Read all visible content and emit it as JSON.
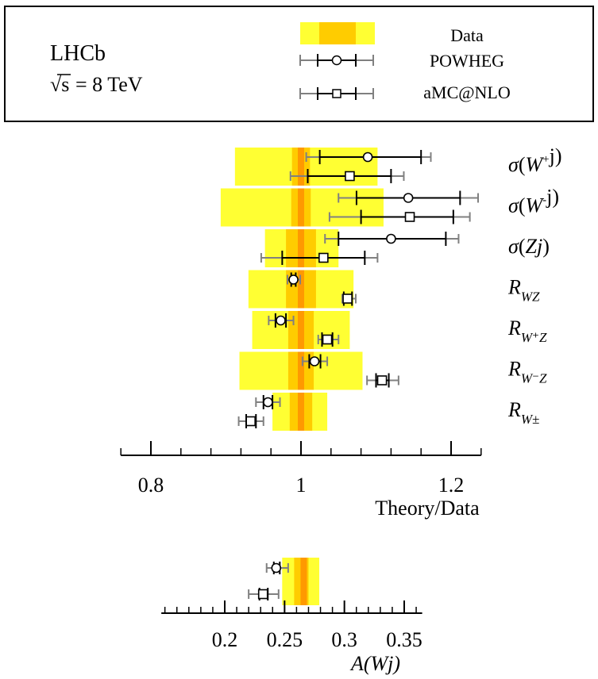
{
  "legend": {
    "experiment": "LHCb",
    "energy_prefix": "√s",
    "energy_value": "= 8 TeV",
    "entries": [
      "Data",
      "POWHEG",
      "aMC@NLO"
    ],
    "placement": "top"
  },
  "colors": {
    "band_outer": "#ffff33",
    "band_inner": "#ffcc00",
    "band_center": "#ff9900",
    "theory_inner": "#000000",
    "theory_outer": "#808080"
  },
  "chart_data": [
    {
      "type": "errorbar",
      "xlabel": "Theory/Data",
      "xlim": [
        0.76,
        1.24
      ],
      "xticks": [
        "0.8",
        "1",
        "1.2"
      ],
      "xtick_values": [
        0.8,
        1.0,
        1.2
      ],
      "observables": [
        {
          "label": "σ(W⁺j)",
          "sym": "σ",
          "open": "(",
          "base": "W",
          "sup": "+",
          "sub": "",
          "close": "j)"
        },
        {
          "label": "σ(W⁻j)",
          "sym": "σ",
          "open": "(",
          "base": "W",
          "sup": "-",
          "sub": "",
          "close": "j)"
        },
        {
          "label": "σ(Zj)",
          "sym": "σ",
          "open": "(",
          "base": "Zj",
          "sup": "",
          "sub": "",
          "close": ")"
        },
        {
          "label": "R_WZ",
          "sym": "",
          "open": "",
          "base": "R",
          "sup": "",
          "sub": "WZ",
          "close": ""
        },
        {
          "label": "R_W+Z",
          "sym": "",
          "open": "",
          "base": "R",
          "sup": "",
          "sub": "W⁺Z",
          "close": ""
        },
        {
          "label": "R_W−Z",
          "sym": "",
          "open": "",
          "base": "R",
          "sup": "",
          "sub": "W⁻Z",
          "close": ""
        },
        {
          "label": "R_W±",
          "sym": "",
          "open": "",
          "base": "R",
          "sup": "",
          "sub": "W±",
          "close": ""
        }
      ],
      "data_band": {
        "outer": [
          [
            0.912,
            1.102
          ],
          [
            0.893,
            1.11
          ],
          [
            0.952,
            1.05
          ],
          [
            0.93,
            1.07
          ],
          [
            0.935,
            1.065
          ],
          [
            0.918,
            1.082
          ],
          [
            0.962,
            1.035
          ]
        ],
        "inner": [
          [
            0.988,
            1.012
          ],
          [
            0.987,
            1.013
          ],
          [
            0.98,
            1.02
          ],
          [
            0.98,
            1.02
          ],
          [
            0.983,
            1.017
          ],
          [
            0.983,
            1.017
          ],
          [
            0.985,
            1.015
          ]
        ]
      },
      "series": [
        {
          "name": "POWHEG",
          "marker": "circle",
          "values": [
            1.089,
            1.143,
            1.12,
            0.99,
            0.973,
            1.018,
            0.956
          ],
          "inner_err": [
            [
              1.025,
              1.16
            ],
            [
              1.074,
              1.212
            ],
            [
              1.05,
              1.193
            ],
            [
              0.987,
              0.993
            ],
            [
              0.966,
              0.98
            ],
            [
              1.011,
              1.026
            ],
            [
              0.95,
              0.962
            ]
          ],
          "outer_err": [
            [
              1.007,
              1.173
            ],
            [
              1.05,
              1.236
            ],
            [
              1.032,
              1.21
            ],
            [
              0.982,
              0.999
            ],
            [
              0.957,
              0.99
            ],
            [
              1.002,
              1.035
            ],
            [
              0.94,
              0.972
            ]
          ]
        },
        {
          "name": "aMC@NLO",
          "marker": "square",
          "values": [
            1.065,
            1.145,
            1.03,
            1.062,
            1.035,
            1.108,
            0.933
          ],
          "inner_err": [
            [
              1.009,
              1.12
            ],
            [
              1.08,
              1.203
            ],
            [
              0.975,
              1.085
            ],
            [
              1.057,
              1.068
            ],
            [
              1.028,
              1.042
            ],
            [
              1.1,
              1.117
            ],
            [
              0.927,
              0.94
            ]
          ],
          "outer_err": [
            [
              0.986,
              1.137
            ],
            [
              1.038,
              1.225
            ],
            [
              0.947,
              1.102
            ],
            [
              1.055,
              1.073
            ],
            [
              1.023,
              1.05
            ],
            [
              1.088,
              1.13
            ],
            [
              0.917,
              0.95
            ]
          ]
        }
      ]
    },
    {
      "type": "errorbar",
      "xlabel": "A(Wj)",
      "xlim": [
        0.147,
        0.365
      ],
      "xticks": [
        "0.2",
        "0.25",
        "0.3",
        "0.35"
      ],
      "xtick_values": [
        0.2,
        0.25,
        0.3,
        0.35
      ],
      "data_band": {
        "outer": [
          0.248,
          0.279
        ],
        "inner": [
          0.258,
          0.27
        ],
        "center": 0.266
      },
      "series": [
        {
          "name": "POWHEG",
          "marker": "circle",
          "values": [
            0.243
          ],
          "inner_err": [
            [
              0.241,
              0.246
            ]
          ],
          "outer_err": [
            [
              0.235,
              0.253
            ]
          ]
        },
        {
          "name": "aMC@NLO",
          "marker": "square",
          "values": [
            0.232
          ],
          "inner_err": [
            [
              0.229,
              0.236
            ]
          ],
          "outer_err": [
            [
              0.22,
              0.245
            ]
          ]
        }
      ]
    }
  ]
}
